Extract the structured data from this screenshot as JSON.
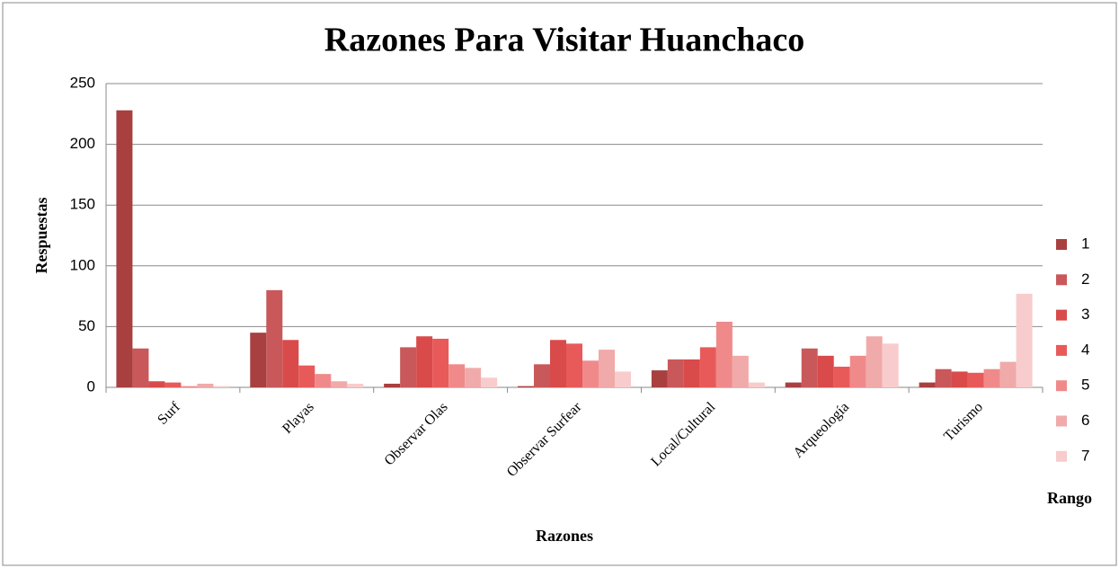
{
  "chart_data": {
    "type": "bar",
    "title": "Razones Para Visitar Huanchaco",
    "x_label": "Razones",
    "y_label": "Respuestas",
    "legend_title": "Rango",
    "categories": [
      "Surf",
      "Playas",
      "Observar Olas",
      "Observar Surfear",
      "Local/Cultural",
      "Arqueología",
      "Turismo"
    ],
    "series": [
      {
        "name": "1",
        "color": "#a8403f",
        "values": [
          228,
          45,
          3,
          1,
          14,
          4,
          4
        ]
      },
      {
        "name": "2",
        "color": "#c9585a",
        "values": [
          32,
          80,
          33,
          19,
          23,
          32,
          15
        ]
      },
      {
        "name": "3",
        "color": "#d94a4a",
        "values": [
          5,
          39,
          42,
          39,
          23,
          26,
          13
        ]
      },
      {
        "name": "4",
        "color": "#e85a5a",
        "values": [
          4,
          18,
          40,
          36,
          33,
          17,
          12
        ]
      },
      {
        "name": "5",
        "color": "#f08a8a",
        "values": [
          1,
          11,
          19,
          22,
          54,
          26,
          15
        ]
      },
      {
        "name": "6",
        "color": "#f0aaaa",
        "values": [
          3,
          5,
          16,
          31,
          26,
          42,
          21
        ]
      },
      {
        "name": "7",
        "color": "#f8cccc",
        "values": [
          1,
          3,
          8,
          13,
          4,
          36,
          77
        ]
      }
    ],
    "ylim": [
      0,
      250
    ],
    "yticks": [
      0,
      50,
      100,
      150,
      200,
      250
    ],
    "grid": true,
    "legend": "right"
  }
}
